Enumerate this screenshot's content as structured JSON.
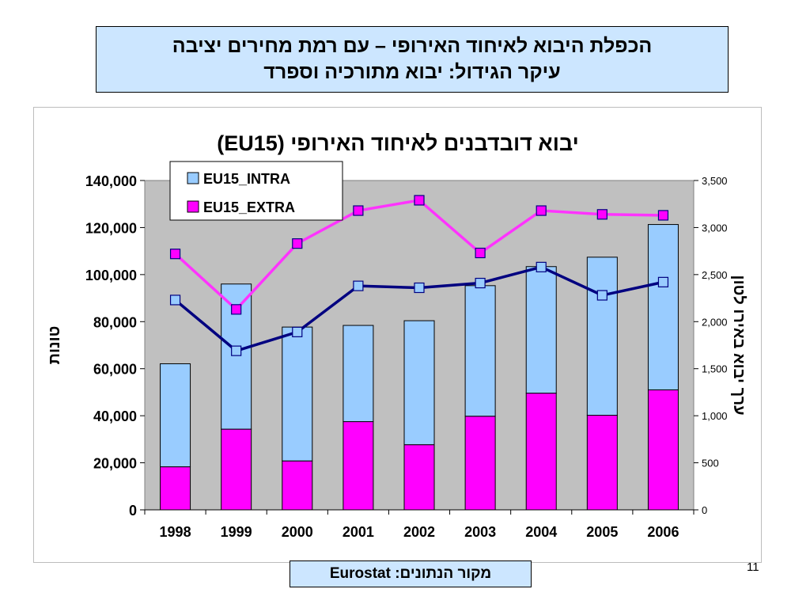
{
  "slide": {
    "title_line1": "הכפלת היבוא לאיחוד האירופי – עם רמת מחירים יציבה",
    "title_line2": "עיקר הגידול: יבוא מתורכיה וספרד",
    "source": "מקור הנתונים: Eurostat",
    "page_number": "11"
  },
  "colors": {
    "title_bg": "#cce6ff",
    "plot_bg": "#c0c0c0",
    "intra_bar": "#99ccff",
    "extra_bar": "#ff00ff",
    "intra_line": "#000080",
    "extra_line": "#ff33ff",
    "intra_marker": "#99ccff",
    "extra_marker": "#ff00ff"
  },
  "chart_data": {
    "type": "bar+line",
    "title": "יבוא דובדבנים לאיחוד האירופי (EU15)",
    "categories": [
      "1998",
      "1999",
      "2000",
      "2001",
      "2002",
      "2003",
      "2004",
      "2005",
      "2006"
    ],
    "ylabel_left": "טונות",
    "ylabel_right": "ערך יבוא באירו לטון",
    "ylim_left": [
      0,
      140000
    ],
    "ylim_right": [
      0,
      3500
    ],
    "yticks_left": [
      "0",
      "20,000",
      "40,000",
      "60,000",
      "80,000",
      "100,000",
      "120,000",
      "140,000"
    ],
    "yticks_right": [
      "0",
      "500",
      "1,000",
      "1,500",
      "2,000",
      "2,500",
      "3,000",
      "3,500"
    ],
    "legend_position": "top-left",
    "grid": false,
    "bar_series": [
      {
        "name": "EU15_INTRA",
        "stacking": "stacked-top",
        "values": [
          43800,
          61700,
          56900,
          40900,
          52700,
          55500,
          53800,
          67200,
          70300
        ]
      },
      {
        "name": "EU15_EXTRA",
        "stacking": "stacked-bottom",
        "values": [
          18300,
          34300,
          20800,
          37500,
          27700,
          39800,
          49600,
          40200,
          51000
        ]
      }
    ],
    "line_series": [
      {
        "name": "EU15_INTRA",
        "axis": "right",
        "values": [
          2230,
          1690,
          1890,
          2380,
          2360,
          2410,
          2580,
          2280,
          2420
        ]
      },
      {
        "name": "EU15_EXTRA",
        "axis": "right",
        "values": [
          2720,
          2130,
          2830,
          3180,
          3290,
          2730,
          3180,
          3140,
          3130
        ]
      }
    ]
  }
}
